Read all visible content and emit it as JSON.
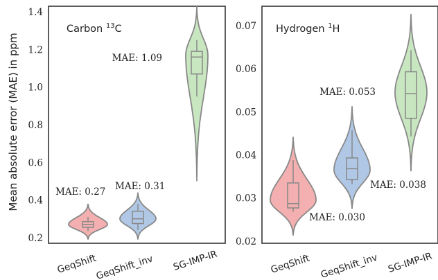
{
  "ylabel": "Mean absolute error (MAE) in ppm",
  "charts": [
    {
      "type": "violin",
      "panel_title": "Carbon ",
      "panel_title_sup": "13",
      "panel_title_suffix": "C",
      "categories": [
        "GeqShift",
        "GeqShift_inv",
        "SG-IMP-IR"
      ],
      "ylim": [
        0.17,
        1.43
      ],
      "yticks": [
        "0.2",
        "0.4",
        "0.6",
        "0.8",
        "1.0",
        "1.2",
        "1.4"
      ],
      "colors": [
        "#f4b0b0",
        "#b0c8e6",
        "#c8e6c0"
      ],
      "series": [
        {
          "category": "GeqShift",
          "mae_label": "MAE: 0.27",
          "min": 0.19,
          "max": 0.38,
          "q1": 0.255,
          "median": 0.27,
          "q3": 0.285,
          "whisker_low": 0.235,
          "whisker_high": 0.31,
          "mode": 0.27
        },
        {
          "category": "GeqShift_inv",
          "mae_label": "MAE: 0.31",
          "min": 0.19,
          "max": 0.44,
          "q1": 0.275,
          "median": 0.3,
          "q3": 0.34,
          "whisker_low": 0.24,
          "whisker_high": 0.38,
          "mode": 0.3
        },
        {
          "category": "SG-IMP-IR",
          "mae_label": "MAE: 1.09",
          "min": 0.5,
          "max": 1.43,
          "q1": 1.07,
          "median": 1.16,
          "q3": 1.19,
          "whisker_low": 0.95,
          "whisker_high": 1.25,
          "mode": 1.17
        }
      ]
    },
    {
      "type": "violin",
      "panel_title": "Hydrogen ",
      "panel_title_sup": "1",
      "panel_title_suffix": "H",
      "categories": [
        "GeqShift",
        "GeqShift_inv",
        "SG-IMP-IR"
      ],
      "ylim": [
        0.0195,
        0.0745
      ],
      "yticks": [
        "0.02",
        "0.03",
        "0.04",
        "0.05",
        "0.06",
        "0.07"
      ],
      "colors": [
        "#f4b0b0",
        "#b0c8e6",
        "#c8e6c0"
      ],
      "series": [
        {
          "category": "GeqShift",
          "mae_label": "MAE: 0.030",
          "min": 0.0213,
          "max": 0.0442,
          "q1": 0.0277,
          "median": 0.0287,
          "q3": 0.0335,
          "whisker_low": 0.0268,
          "whisker_high": 0.0388,
          "mode": 0.0295
        },
        {
          "category": "GeqShift_inv",
          "mae_label": "MAE: 0.038",
          "min": 0.0275,
          "max": 0.0513,
          "q1": 0.0343,
          "median": 0.0368,
          "q3": 0.0393,
          "whisker_low": 0.0332,
          "whisker_high": 0.0457,
          "mode": 0.0365
        },
        {
          "category": "SG-IMP-IR",
          "mae_label": "MAE: 0.053",
          "min": 0.0362,
          "max": 0.0727,
          "q1": 0.0485,
          "median": 0.0542,
          "q3": 0.0593,
          "whisker_low": 0.0443,
          "whisker_high": 0.0643,
          "mode": 0.0545
        }
      ]
    }
  ]
}
